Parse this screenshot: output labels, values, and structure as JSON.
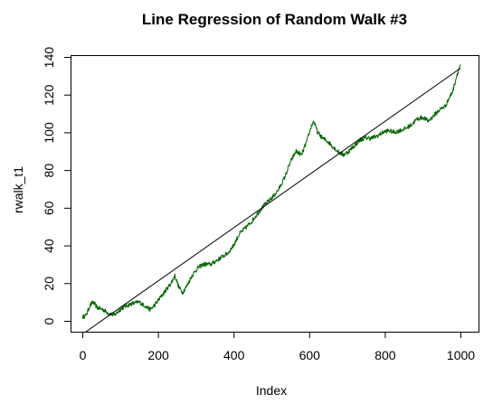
{
  "chart_data": {
    "type": "line",
    "title": "Line Regression of Random Walk #3",
    "xlabel": "Index",
    "ylabel": "rwalk_t1",
    "xlim": [
      0,
      1000
    ],
    "ylim": [
      0,
      140
    ],
    "x_ticks": [
      0,
      200,
      400,
      600,
      800,
      1000
    ],
    "y_ticks": [
      0,
      20,
      40,
      60,
      80,
      100,
      120,
      140
    ],
    "grid": false,
    "series": [
      {
        "kind": "random_walk",
        "color": "#006400",
        "points": [
          [
            1,
            2
          ],
          [
            10,
            3
          ],
          [
            20,
            8
          ],
          [
            28,
            10
          ],
          [
            40,
            7
          ],
          [
            55,
            6
          ],
          [
            70,
            4
          ],
          [
            85,
            3
          ],
          [
            100,
            6
          ],
          [
            115,
            8
          ],
          [
            130,
            9
          ],
          [
            150,
            10
          ],
          [
            165,
            8
          ],
          [
            180,
            6
          ],
          [
            190,
            8
          ],
          [
            205,
            12
          ],
          [
            220,
            16
          ],
          [
            235,
            20
          ],
          [
            245,
            24
          ],
          [
            255,
            18
          ],
          [
            265,
            15
          ],
          [
            275,
            18
          ],
          [
            290,
            24
          ],
          [
            305,
            28
          ],
          [
            320,
            30
          ],
          [
            340,
            30
          ],
          [
            355,
            32
          ],
          [
            370,
            34
          ],
          [
            385,
            36
          ],
          [
            400,
            40
          ],
          [
            415,
            46
          ],
          [
            430,
            49
          ],
          [
            445,
            52
          ],
          [
            460,
            56
          ],
          [
            475,
            60
          ],
          [
            490,
            63
          ],
          [
            505,
            66
          ],
          [
            520,
            70
          ],
          [
            535,
            76
          ],
          [
            550,
            84
          ],
          [
            565,
            90
          ],
          [
            580,
            88
          ],
          [
            595,
            96
          ],
          [
            605,
            103
          ],
          [
            612,
            106
          ],
          [
            622,
            100
          ],
          [
            635,
            97
          ],
          [
            650,
            95
          ],
          [
            665,
            92
          ],
          [
            675,
            90
          ],
          [
            690,
            88
          ],
          [
            705,
            90
          ],
          [
            720,
            93
          ],
          [
            735,
            96
          ],
          [
            750,
            97
          ],
          [
            765,
            97
          ],
          [
            780,
            98
          ],
          [
            795,
            100
          ],
          [
            810,
            101
          ],
          [
            825,
            100
          ],
          [
            840,
            101
          ],
          [
            855,
            102
          ],
          [
            870,
            104
          ],
          [
            885,
            107
          ],
          [
            900,
            108
          ],
          [
            915,
            106
          ],
          [
            930,
            109
          ],
          [
            945,
            112
          ],
          [
            960,
            114
          ],
          [
            970,
            118
          ],
          [
            980,
            122
          ],
          [
            990,
            130
          ],
          [
            1000,
            136
          ]
        ]
      },
      {
        "kind": "regression_line",
        "color": "#000000",
        "points": [
          [
            1,
            -7
          ],
          [
            1000,
            134
          ]
        ]
      }
    ]
  }
}
